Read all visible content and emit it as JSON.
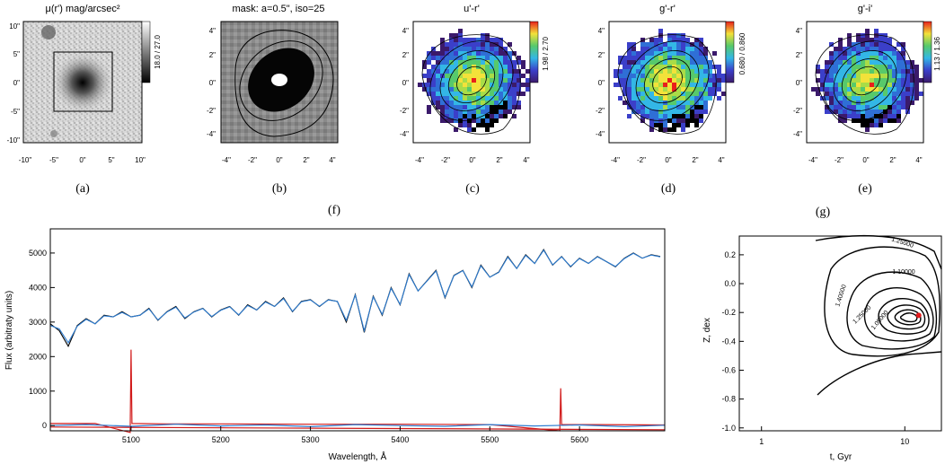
{
  "panels": {
    "a": {
      "title": "μ(r') mag/arcsec²",
      "colorbar": "18.0 / 27.0",
      "caption": "(a)",
      "xticks": [
        "-10\"",
        "-5\"",
        "0\"",
        "5\"",
        "10\""
      ],
      "yticks": [
        "10\"",
        "5\"",
        "0\"",
        "-5\"",
        "-10\""
      ]
    },
    "b": {
      "title": "mask: a=0.5\", iso=25",
      "caption": "(b)",
      "xticks": [
        "-4\"",
        "-2\"",
        "0\"",
        "2\"",
        "4\""
      ],
      "yticks": [
        "4\"",
        "2\"",
        "0\"",
        "-2\"",
        "-4\""
      ]
    },
    "c": {
      "title": "u'-r'",
      "colorbar": "1.98 / 2.70",
      "caption": "(c)",
      "xticks": [
        "-4\"",
        "-2\"",
        "0\"",
        "2\"",
        "4\""
      ],
      "yticks": [
        "4\"",
        "2\"",
        "0\"",
        "-2\"",
        "-4\""
      ]
    },
    "d": {
      "title": "g'-r'",
      "colorbar": "0.680 / 0.860",
      "caption": "(d)",
      "xticks": [
        "-4\"",
        "-2\"",
        "0\"",
        "2\"",
        "4\""
      ],
      "yticks": [
        "4\"",
        "2\"",
        "0\"",
        "-2\"",
        "-4\""
      ]
    },
    "e": {
      "title": "g'-i'",
      "colorbar": "1.13 / 1.36",
      "caption": "(e)",
      "xticks": [
        "-4\"",
        "-2\"",
        "0\"",
        "2\"",
        "4\""
      ],
      "yticks": [
        "4\"",
        "2\"",
        "0\"",
        "-2\"",
        "-4\""
      ]
    }
  },
  "captions": {
    "f": "(f)",
    "g": "(g)"
  },
  "chart_data": [
    {
      "type": "line",
      "xlabel": "Wavelength, Å",
      "ylabel": "Flux (arbitraty units)",
      "xlim": [
        5010,
        5695
      ],
      "ylim": [
        -150,
        5700
      ],
      "xticks": [
        5100,
        5200,
        5300,
        5400,
        5500,
        5600
      ],
      "yticks": [
        0,
        1000,
        2000,
        3000,
        4000,
        5000
      ],
      "series": [
        {
          "color": "#000000",
          "x": [
            5010,
            5020,
            5030,
            5040,
            5050,
            5060,
            5070,
            5080,
            5090,
            5100,
            5110,
            5120,
            5130,
            5140,
            5150,
            5160,
            5170,
            5180,
            5190,
            5200,
            5210,
            5220,
            5230,
            5240,
            5250,
            5260,
            5270,
            5280,
            5290,
            5300,
            5310,
            5320,
            5330,
            5340,
            5350,
            5360,
            5370,
            5380,
            5390,
            5400,
            5410,
            5420,
            5430,
            5440,
            5450,
            5460,
            5470,
            5480,
            5490,
            5500,
            5510,
            5520,
            5530,
            5540,
            5550,
            5560,
            5570,
            5580,
            5590,
            5600,
            5610,
            5620,
            5630,
            5640,
            5650,
            5660,
            5670,
            5680,
            5690
          ],
          "y": [
            2950,
            2750,
            2300,
            2900,
            3100,
            2950,
            3200,
            3150,
            3300,
            3150,
            3200,
            3400,
            3050,
            3300,
            3450,
            3100,
            3300,
            3400,
            3150,
            3350,
            3450,
            3200,
            3500,
            3350,
            3600,
            3450,
            3700,
            3300,
            3600,
            3650,
            3450,
            3650,
            3600,
            3000,
            3800,
            2700,
            3750,
            3200,
            4000,
            3500,
            4400,
            3900,
            4200,
            4500,
            3700,
            4350,
            4500,
            4000,
            4650,
            4300,
            4450,
            4900,
            4550,
            4950,
            4700,
            5100,
            4650,
            4900,
            4600,
            4850,
            4700,
            4900,
            4750,
            4600,
            4850,
            5000,
            4850,
            4950,
            4900
          ]
        },
        {
          "color": "#2d7dd2",
          "x": [
            5010,
            5020,
            5030,
            5040,
            5050,
            5060,
            5070,
            5080,
            5090,
            5100,
            5110,
            5120,
            5130,
            5140,
            5150,
            5160,
            5170,
            5180,
            5190,
            5200,
            5210,
            5220,
            5230,
            5240,
            5250,
            5260,
            5270,
            5280,
            5290,
            5300,
            5310,
            5320,
            5330,
            5340,
            5350,
            5360,
            5370,
            5380,
            5390,
            5400,
            5410,
            5420,
            5430,
            5440,
            5450,
            5460,
            5470,
            5480,
            5490,
            5500,
            5510,
            5520,
            5530,
            5540,
            5550,
            5560,
            5570,
            5580,
            5590,
            5600,
            5610,
            5620,
            5630,
            5640,
            5650,
            5660,
            5670,
            5680,
            5690
          ],
          "y": [
            2900,
            2800,
            2400,
            2880,
            3080,
            2950,
            3180,
            3150,
            3280,
            3150,
            3200,
            3380,
            3060,
            3290,
            3430,
            3120,
            3290,
            3390,
            3160,
            3340,
            3440,
            3210,
            3480,
            3350,
            3580,
            3450,
            3680,
            3310,
            3590,
            3640,
            3460,
            3640,
            3600,
            3050,
            3780,
            2750,
            3730,
            3220,
            3980,
            3510,
            4380,
            3900,
            4190,
            4480,
            3720,
            4340,
            4490,
            4020,
            4630,
            4300,
            4440,
            4880,
            4550,
            4930,
            4700,
            5080,
            4660,
            4890,
            4610,
            4840,
            4700,
            4890,
            4750,
            4610,
            4840,
            4990,
            4850,
            4940,
            4890
          ]
        },
        {
          "color": "#d11a1a",
          "x": [
            5010,
            5060,
            5099,
            5100,
            5101,
            5140,
            5200,
            5300,
            5400,
            5500,
            5578,
            5579,
            5580,
            5620,
            5695
          ],
          "y": [
            60,
            60,
            -200,
            2200,
            60,
            50,
            50,
            40,
            40,
            30,
            -150,
            1080,
            30,
            30,
            20
          ]
        },
        {
          "color": "#d11a1a",
          "x": [
            5010,
            5695
          ],
          "y": [
            -40,
            -120
          ]
        },
        {
          "color": "#2d7dd2",
          "x": [
            5010,
            5050,
            5100,
            5150,
            5200,
            5250,
            5300,
            5350,
            5400,
            5450,
            5500,
            5550,
            5600,
            5650,
            5695
          ],
          "y": [
            0,
            30,
            -20,
            40,
            -10,
            20,
            -30,
            30,
            0,
            -20,
            30,
            -10,
            20,
            -30,
            10
          ]
        }
      ]
    },
    {
      "type": "contour",
      "xlabel": "t, Gyr",
      "ylabel": "Z, dex",
      "xscale": "log",
      "xlim": [
        0.7,
        18
      ],
      "ylim": [
        -1.02,
        0.33
      ],
      "xticks": [
        1,
        10
      ],
      "yticks": [
        0.2,
        0.0,
        -0.2,
        -0.4,
        -0.6,
        -0.8,
        -1.0
      ],
      "contour_labels": [
        "1.25000",
        "1.10000",
        "1.40000",
        "1.25000",
        "1.05000"
      ],
      "minimum": {
        "t": 12.5,
        "z": -0.22
      }
    }
  ]
}
